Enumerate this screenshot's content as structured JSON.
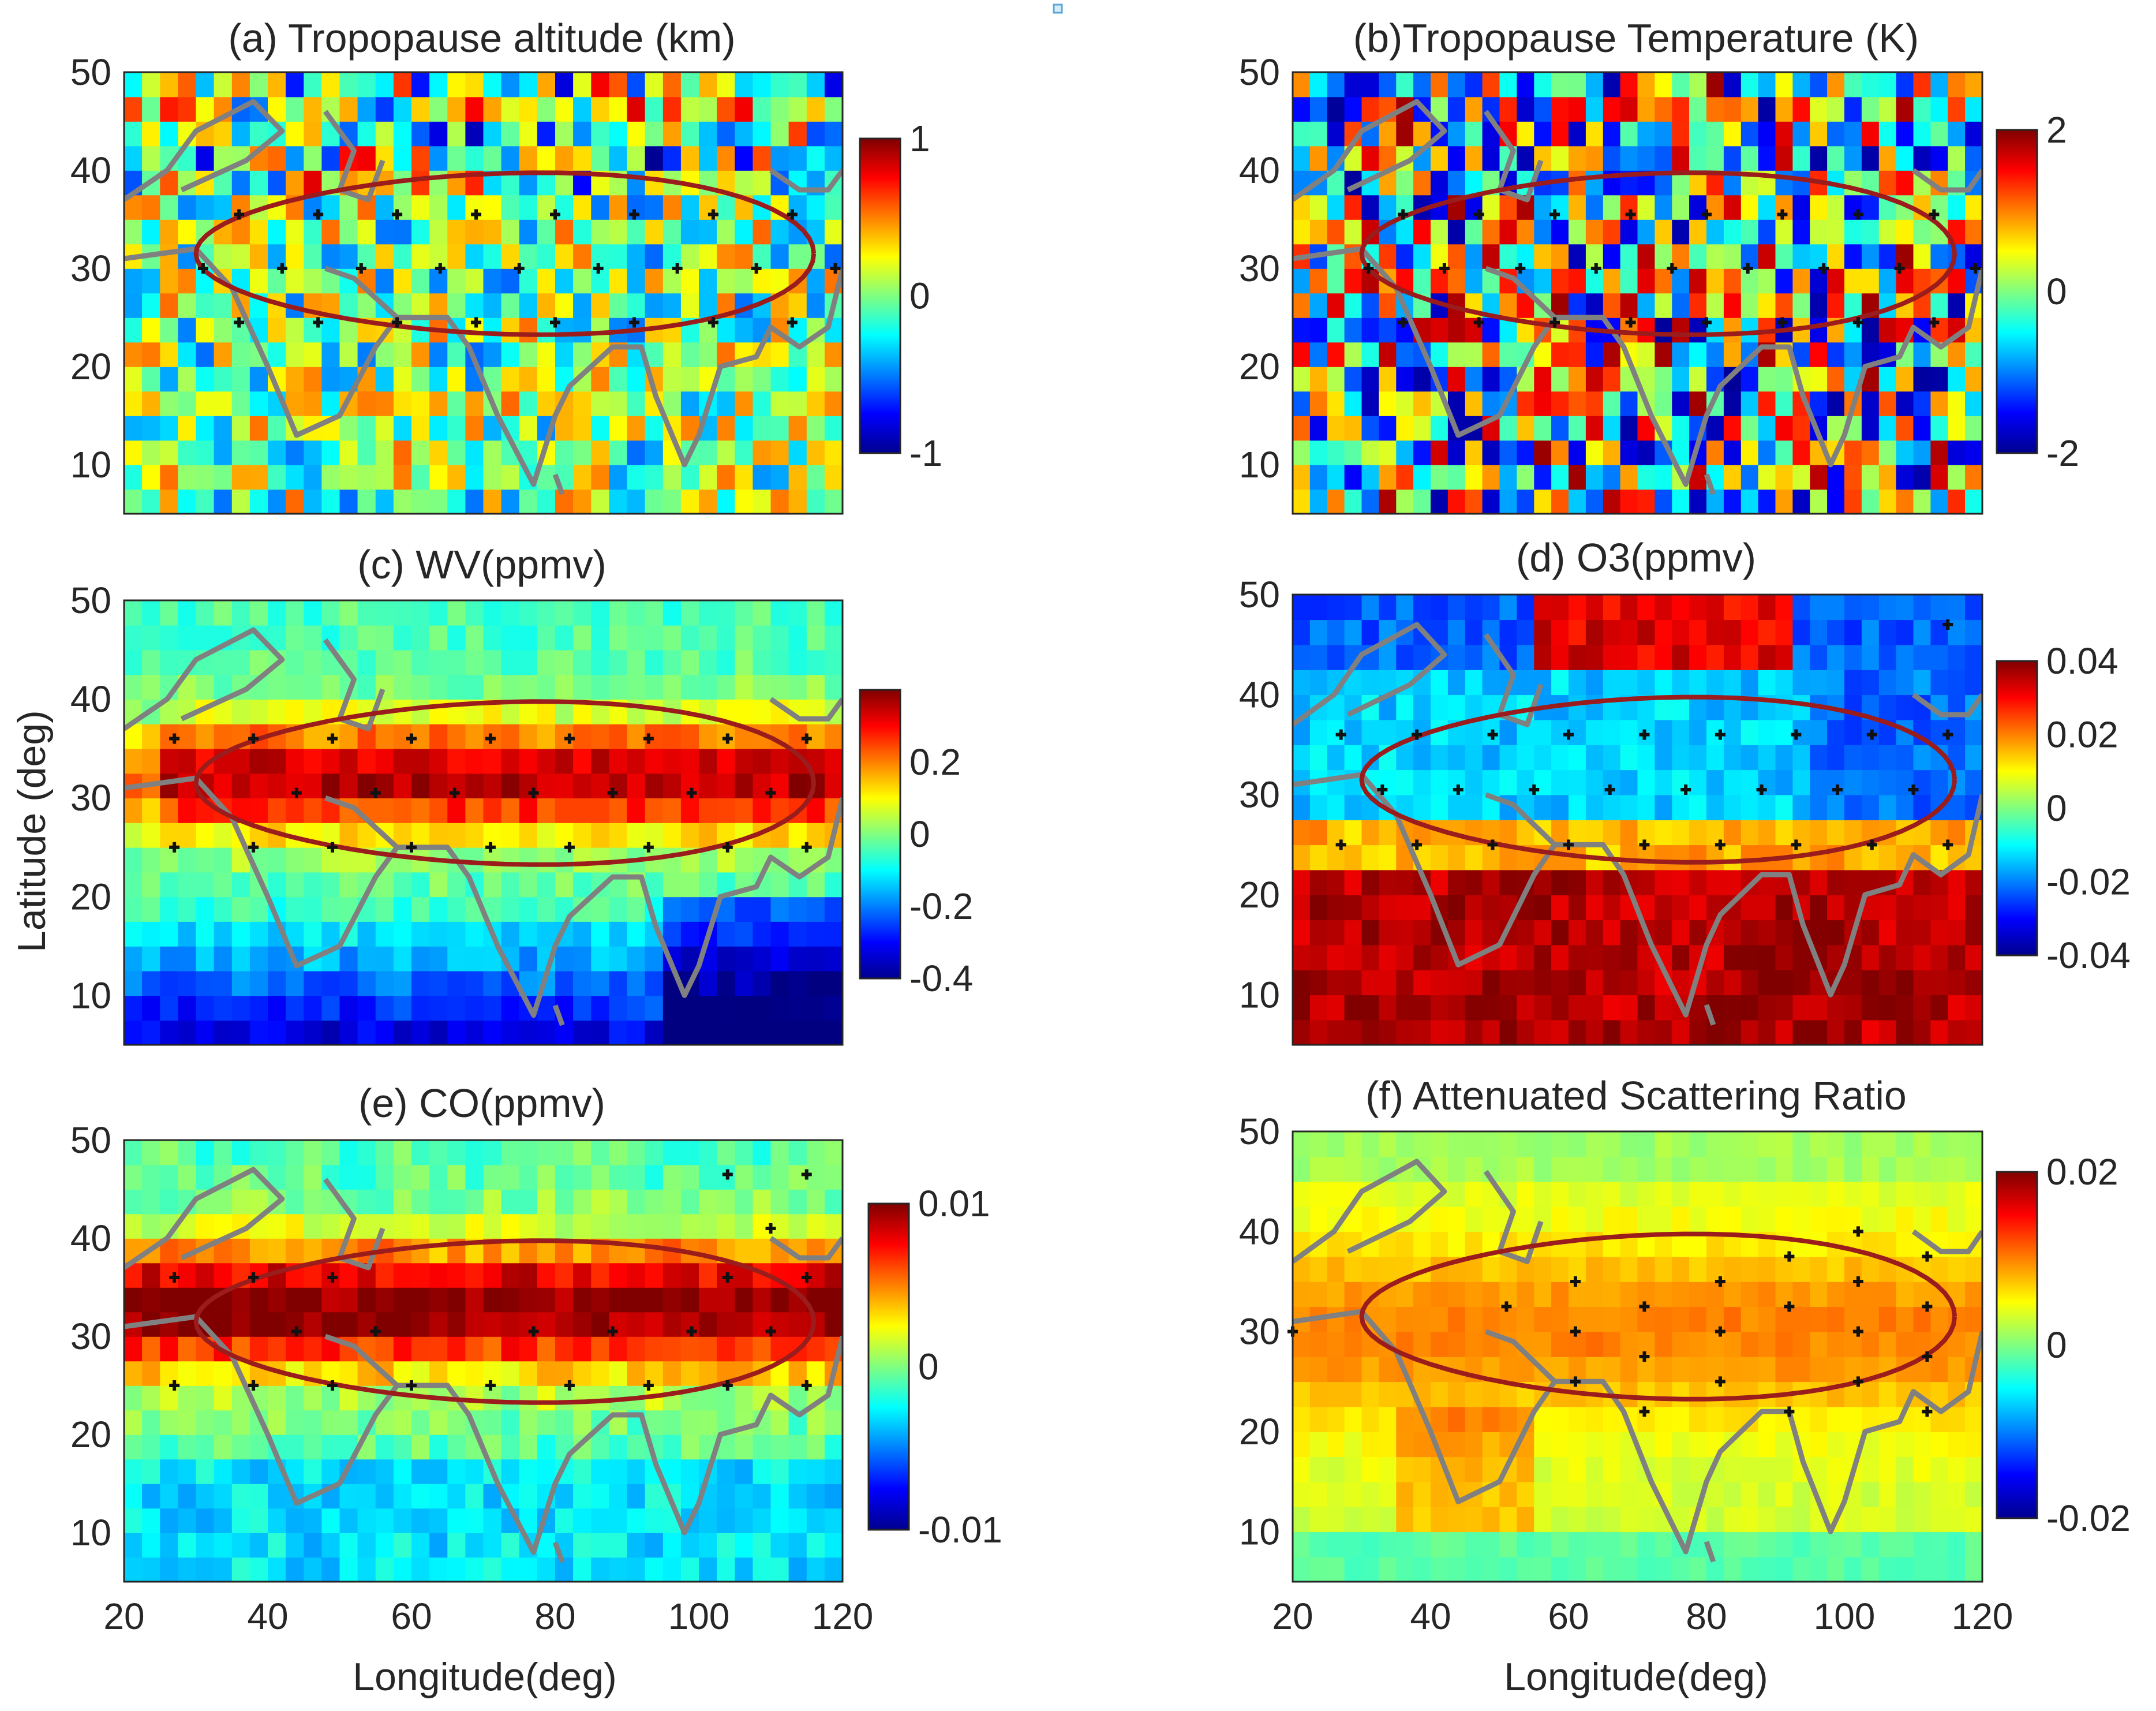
{
  "figure": {
    "shared_xlabel": "Longitude(deg)",
    "shared_ylabel": "Latitude (deg)"
  },
  "chart_data": [
    {
      "id": "a",
      "type": "heatmap",
      "title": "(a) Tropopause altitude (km)",
      "xlabel": "",
      "ylabel": "",
      "xlim": [
        20,
        120
      ],
      "ylim": [
        5,
        50
      ],
      "xticks": [],
      "yticks": [
        10,
        20,
        30,
        40,
        50
      ],
      "colorbar": {
        "range": [
          -1,
          1
        ],
        "ticks": [
          -1,
          0,
          1
        ]
      },
      "field_pattern": "noisy",
      "hatch_points": [
        [
          36,
          35.5
        ],
        [
          47,
          35.5
        ],
        [
          58,
          35.5
        ],
        [
          69,
          35.5
        ],
        [
          80,
          35.5
        ],
        [
          91,
          35.5
        ],
        [
          102,
          35.5
        ],
        [
          113,
          35.5
        ],
        [
          31,
          30
        ],
        [
          42,
          30
        ],
        [
          53,
          30
        ],
        [
          64,
          30
        ],
        [
          75,
          30
        ],
        [
          86,
          30
        ],
        [
          97,
          30
        ],
        [
          108,
          30
        ],
        [
          119,
          30
        ],
        [
          36,
          24.5
        ],
        [
          47,
          24.5
        ],
        [
          58,
          24.5
        ],
        [
          69,
          24.5
        ],
        [
          80,
          24.5
        ],
        [
          91,
          24.5
        ],
        [
          102,
          24.5
        ],
        [
          113,
          24.5
        ]
      ]
    },
    {
      "id": "b",
      "type": "heatmap",
      "title": "(b)Tropopause Temperature (K)",
      "xlabel": "",
      "ylabel": "",
      "xlim": [
        20,
        120
      ],
      "ylim": [
        5,
        50
      ],
      "xticks": [],
      "yticks": [
        10,
        20,
        30,
        40,
        50
      ],
      "colorbar": {
        "range": [
          -2,
          2
        ],
        "ticks": [
          -2,
          0,
          2
        ]
      },
      "field_pattern": "noisy_strong",
      "hatch_points": [
        [
          36,
          35.5
        ],
        [
          47,
          35.5
        ],
        [
          58,
          35.5
        ],
        [
          69,
          35.5
        ],
        [
          80,
          35.5
        ],
        [
          91,
          35.5
        ],
        [
          102,
          35.5
        ],
        [
          113,
          35.5
        ],
        [
          31,
          30
        ],
        [
          42,
          30
        ],
        [
          53,
          30
        ],
        [
          64,
          30
        ],
        [
          75,
          30
        ],
        [
          86,
          30
        ],
        [
          97,
          30
        ],
        [
          108,
          30
        ],
        [
          119,
          30
        ],
        [
          36,
          24.5
        ],
        [
          47,
          24.5
        ],
        [
          58,
          24.5
        ],
        [
          69,
          24.5
        ],
        [
          80,
          24.5
        ],
        [
          91,
          24.5
        ],
        [
          102,
          24.5
        ],
        [
          113,
          24.5
        ]
      ]
    },
    {
      "id": "c",
      "type": "heatmap",
      "title": "(c) WV(ppmv)",
      "xlabel": "",
      "ylabel": "Latitude (deg)",
      "xlim": [
        20,
        120
      ],
      "ylim": [
        5,
        50
      ],
      "xticks": [],
      "yticks": [
        10,
        20,
        30,
        40,
        50
      ],
      "colorbar": {
        "range": [
          -0.4,
          0.4
        ],
        "ticks": [
          -0.4,
          -0.2,
          0,
          0.2
        ]
      },
      "field_pattern": "band_positive",
      "hatch_points": [
        [
          27,
          36
        ],
        [
          38,
          36
        ],
        [
          49,
          36
        ],
        [
          60,
          36
        ],
        [
          71,
          36
        ],
        [
          82,
          36
        ],
        [
          93,
          36
        ],
        [
          104,
          36
        ],
        [
          115,
          36
        ],
        [
          44,
          30.5
        ],
        [
          55,
          30.5
        ],
        [
          66,
          30.5
        ],
        [
          77,
          30.5
        ],
        [
          88,
          30.5
        ],
        [
          99,
          30.5
        ],
        [
          110,
          30.5
        ],
        [
          27,
          25
        ],
        [
          38,
          25
        ],
        [
          49,
          25
        ],
        [
          60,
          25
        ],
        [
          71,
          25
        ],
        [
          82,
          25
        ],
        [
          93,
          25
        ],
        [
          104,
          25
        ],
        [
          115,
          25
        ]
      ]
    },
    {
      "id": "d",
      "type": "heatmap",
      "title": "(d) O3(ppmv)",
      "xlabel": "",
      "ylabel": "",
      "xlim": [
        20,
        120
      ],
      "ylim": [
        5,
        50
      ],
      "xticks": [],
      "yticks": [
        10,
        20,
        30,
        40,
        50
      ],
      "colorbar": {
        "range": [
          -0.04,
          0.04
        ],
        "ticks": [
          -0.04,
          -0.02,
          0,
          0.02,
          0.04
        ]
      },
      "field_pattern": "o3",
      "hatch_points": [
        [
          27,
          36
        ],
        [
          38,
          36
        ],
        [
          49,
          36
        ],
        [
          60,
          36
        ],
        [
          71,
          36
        ],
        [
          82,
          36
        ],
        [
          93,
          36
        ],
        [
          104,
          36
        ],
        [
          115,
          36
        ],
        [
          33,
          30.5
        ],
        [
          44,
          30.5
        ],
        [
          55,
          30.5
        ],
        [
          66,
          30.5
        ],
        [
          77,
          30.5
        ],
        [
          88,
          30.5
        ],
        [
          99,
          30.5
        ],
        [
          110,
          30.5
        ],
        [
          27,
          25
        ],
        [
          38,
          25
        ],
        [
          49,
          25
        ],
        [
          60,
          25
        ],
        [
          71,
          25
        ],
        [
          82,
          25
        ],
        [
          93,
          25
        ],
        [
          104,
          25
        ],
        [
          115,
          25
        ],
        [
          115,
          47
        ]
      ]
    },
    {
      "id": "e",
      "type": "heatmap",
      "title": "(e) CO(ppmv)",
      "xlabel": "Longitude(deg)",
      "ylabel": "",
      "xlim": [
        20,
        120
      ],
      "ylim": [
        5,
        50
      ],
      "xticks": [
        20,
        40,
        60,
        80,
        100,
        120
      ],
      "yticks": [
        10,
        20,
        30,
        40,
        50
      ],
      "colorbar": {
        "range": [
          -0.01,
          0.01
        ],
        "ticks": [
          -0.01,
          0,
          0.01
        ]
      },
      "field_pattern": "co",
      "hatch_points": [
        [
          27,
          36
        ],
        [
          38,
          36
        ],
        [
          49,
          36
        ],
        [
          104,
          36
        ],
        [
          115,
          36
        ],
        [
          44,
          30.5
        ],
        [
          55,
          30.5
        ],
        [
          77,
          30.5
        ],
        [
          88,
          30.5
        ],
        [
          99,
          30.5
        ],
        [
          110,
          30.5
        ],
        [
          27,
          25
        ],
        [
          38,
          25
        ],
        [
          49,
          25
        ],
        [
          60,
          25
        ],
        [
          71,
          25
        ],
        [
          82,
          25
        ],
        [
          93,
          25
        ],
        [
          104,
          25
        ],
        [
          115,
          25
        ],
        [
          104,
          46.5
        ],
        [
          115,
          46.5
        ],
        [
          110,
          41
        ]
      ]
    },
    {
      "id": "f",
      "type": "heatmap",
      "title": "(f) Attenuated Scattering Ratio",
      "xlabel": "Longitude(deg)",
      "ylabel": "",
      "xlim": [
        20,
        120
      ],
      "ylim": [
        5,
        50
      ],
      "xticks": [
        20,
        40,
        60,
        80,
        100,
        120
      ],
      "yticks": [
        10,
        20,
        30,
        40,
        50
      ],
      "colorbar": {
        "range": [
          -0.02,
          0.02
        ],
        "ticks": [
          -0.02,
          0,
          0.02
        ]
      },
      "field_pattern": "asr",
      "hatch_points": [
        [
          20,
          30
        ],
        [
          51,
          32.5
        ],
        [
          61,
          30
        ],
        [
          71,
          32.5
        ],
        [
          82,
          35
        ],
        [
          92,
          37.5
        ],
        [
          102,
          40
        ],
        [
          112,
          37.5
        ],
        [
          61,
          35
        ],
        [
          71,
          27.5
        ],
        [
          82,
          30
        ],
        [
          92,
          32.5
        ],
        [
          102,
          35
        ],
        [
          112,
          32.5
        ],
        [
          61,
          25
        ],
        [
          82,
          25
        ],
        [
          102,
          25
        ],
        [
          71,
          22
        ],
        [
          92,
          22
        ],
        [
          112,
          22
        ],
        [
          112,
          27.5
        ],
        [
          102,
          30
        ]
      ]
    }
  ]
}
